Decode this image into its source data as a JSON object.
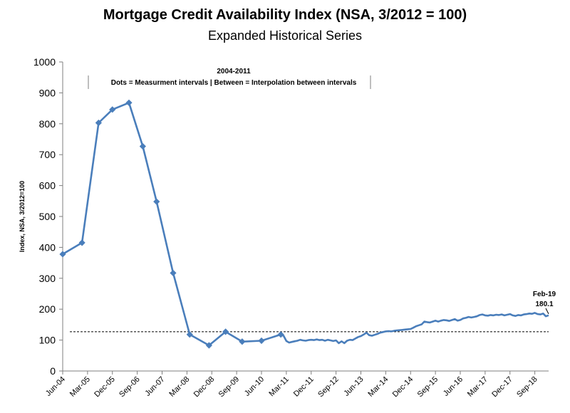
{
  "chart_data": {
    "type": "line",
    "title": "Mortgage Credit Availability Index (NSA, 3/2012 = 100)",
    "subtitle": "Expanded Historical Series",
    "ylabel": "Index, NSA, 3/2012=100",
    "xlabel": "",
    "ylim": [
      0,
      1000
    ],
    "yticks": [
      0,
      100,
      200,
      300,
      400,
      500,
      600,
      700,
      800,
      900,
      1000
    ],
    "xtick_labels": [
      "Jun-04",
      "Mar-05",
      "Dec-05",
      "Sep-06",
      "Jun-07",
      "Mar-08",
      "Dec-08",
      "Sep-09",
      "Jun-10",
      "Mar-11",
      "Dec-11",
      "Sep-12",
      "Jun-13",
      "Mar-14",
      "Dec-14",
      "Sep-15",
      "Jun-16",
      "Mar-17",
      "Dec-17",
      "Sep-18"
    ],
    "reference_line": 127,
    "annotation_period": "2004-2011",
    "annotation_text": "Dots = Measurment intervals  |  Between = Interpolation between intervals",
    "last_label_date": "Feb-19",
    "last_label_value": "180.1",
    "line_color": "#4a7ebb",
    "measurement_points": [
      [
        "Jun-04",
        378
      ],
      [
        "Jan-05",
        415
      ],
      [
        "Jul-05",
        803
      ],
      [
        "Dec-05",
        846
      ],
      [
        "Jun-06",
        868
      ],
      [
        "Nov-06",
        727
      ],
      [
        "Apr-07",
        548
      ],
      [
        "Oct-07",
        317
      ],
      [
        "Apr-08",
        118
      ],
      [
        "Nov-08",
        83
      ],
      [
        "May-09",
        127
      ],
      [
        "Nov-09",
        95
      ],
      [
        "Jun-10",
        98
      ],
      [
        "Jan-11",
        118
      ]
    ],
    "monthly_series": [
      [
        "Feb-11",
        114
      ],
      [
        "Mar-11",
        97
      ],
      [
        "Apr-11",
        92
      ],
      [
        "May-11",
        94
      ],
      [
        "Jun-11",
        96
      ],
      [
        "Jul-11",
        98
      ],
      [
        "Aug-11",
        101
      ],
      [
        "Sep-11",
        99
      ],
      [
        "Oct-11",
        98
      ],
      [
        "Nov-11",
        100
      ],
      [
        "Dec-11",
        101
      ],
      [
        "Jan-12",
        100
      ],
      [
        "Feb-12",
        102
      ],
      [
        "Mar-12",
        100
      ],
      [
        "Apr-12",
        101
      ],
      [
        "May-12",
        98
      ],
      [
        "Jun-12",
        101
      ],
      [
        "Jul-12",
        99
      ],
      [
        "Aug-12",
        97
      ],
      [
        "Sep-12",
        99
      ],
      [
        "Oct-12",
        90
      ],
      [
        "Nov-12",
        96
      ],
      [
        "Dec-12",
        90
      ],
      [
        "Jan-13",
        98
      ],
      [
        "Feb-13",
        101
      ],
      [
        "Mar-13",
        100
      ],
      [
        "Apr-13",
        105
      ],
      [
        "May-13",
        110
      ],
      [
        "Jun-13",
        113
      ],
      [
        "Jul-13",
        118
      ],
      [
        "Aug-13",
        124
      ],
      [
        "Sep-13",
        116
      ],
      [
        "Oct-13",
        114
      ],
      [
        "Nov-13",
        117
      ],
      [
        "Dec-13",
        120
      ],
      [
        "Jan-14",
        124
      ],
      [
        "Feb-14",
        126
      ],
      [
        "Mar-14",
        128
      ],
      [
        "Apr-14",
        129
      ],
      [
        "May-14",
        128
      ],
      [
        "Jun-14",
        130
      ],
      [
        "Jul-14",
        131
      ],
      [
        "Aug-14",
        132
      ],
      [
        "Sep-14",
        133
      ],
      [
        "Oct-14",
        134
      ],
      [
        "Nov-14",
        135
      ],
      [
        "Dec-14",
        136
      ],
      [
        "Jan-15",
        140
      ],
      [
        "Feb-15",
        145
      ],
      [
        "Mar-15",
        148
      ],
      [
        "Apr-15",
        151
      ],
      [
        "May-15",
        160
      ],
      [
        "Jun-15",
        158
      ],
      [
        "Jul-15",
        157
      ],
      [
        "Aug-15",
        160
      ],
      [
        "Sep-15",
        163
      ],
      [
        "Oct-15",
        160
      ],
      [
        "Nov-15",
        163
      ],
      [
        "Dec-15",
        165
      ],
      [
        "Jan-16",
        164
      ],
      [
        "Feb-16",
        162
      ],
      [
        "Mar-16",
        165
      ],
      [
        "Apr-16",
        168
      ],
      [
        "May-16",
        163
      ],
      [
        "Jun-16",
        165
      ],
      [
        "Jul-16",
        170
      ],
      [
        "Aug-16",
        172
      ],
      [
        "Sep-16",
        175
      ],
      [
        "Oct-16",
        173
      ],
      [
        "Nov-16",
        175
      ],
      [
        "Dec-16",
        177
      ],
      [
        "Jan-17",
        181
      ],
      [
        "Feb-17",
        183
      ],
      [
        "Mar-17",
        180
      ],
      [
        "Apr-17",
        179
      ],
      [
        "May-17",
        181
      ],
      [
        "Jun-17",
        180
      ],
      [
        "Jul-17",
        182
      ],
      [
        "Aug-17",
        181
      ],
      [
        "Sep-17",
        183
      ],
      [
        "Oct-17",
        180
      ],
      [
        "Nov-17",
        182
      ],
      [
        "Dec-17",
        184
      ],
      [
        "Jan-18",
        180
      ],
      [
        "Feb-18",
        178
      ],
      [
        "Mar-18",
        181
      ],
      [
        "Apr-18",
        180
      ],
      [
        "May-18",
        183
      ],
      [
        "Jun-18",
        184
      ],
      [
        "Jul-18",
        186
      ],
      [
        "Aug-18",
        185
      ],
      [
        "Sep-18",
        188
      ],
      [
        "Oct-18",
        184
      ],
      [
        "Nov-18",
        183
      ],
      [
        "Dec-18",
        186
      ],
      [
        "Jan-19",
        177
      ],
      [
        "Feb-19",
        180.1
      ]
    ]
  }
}
